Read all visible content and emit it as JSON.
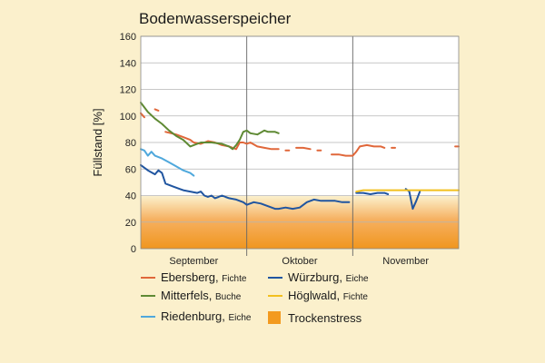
{
  "chart_data": {
    "type": "line",
    "title": "Bodenwasserspeicher",
    "xlabel": "",
    "ylabel": "Füllstand [%]",
    "ylim": [
      0,
      160
    ],
    "yticks": [
      "0",
      "20",
      "40",
      "60",
      "80",
      "100",
      "120",
      "140",
      "160"
    ],
    "xlim": [
      "2023-09-01",
      "2023-11-30"
    ],
    "x_categories": [
      "September",
      "Oktober",
      "November"
    ],
    "grid": true,
    "background_band": {
      "name": "Trockenstress",
      "ymin": 0,
      "ymax": 40,
      "color": "#f39a1f"
    },
    "legend_position": "bottom",
    "series": [
      {
        "name": "Ebersberg,",
        "species": "Fichte",
        "color": "#e0673a",
        "segments": [
          [
            [
              "2023-09-01",
              102
            ],
            [
              "2023-09-02",
              99
            ]
          ],
          [
            [
              "2023-09-05",
              105
            ],
            [
              "2023-09-06",
              104
            ]
          ],
          [
            [
              "2023-09-08",
              88
            ],
            [
              "2023-09-11",
              86
            ],
            [
              "2023-09-13",
              84
            ],
            [
              "2023-09-15",
              82
            ],
            [
              "2023-09-16",
              80
            ],
            [
              "2023-09-18",
              79
            ],
            [
              "2023-09-20",
              81
            ],
            [
              "2023-09-22",
              80
            ],
            [
              "2023-09-24",
              78
            ],
            [
              "2023-09-26",
              77
            ],
            [
              "2023-09-28",
              75
            ],
            [
              "2023-09-29",
              80
            ],
            [
              "2023-09-30",
              80
            ],
            [
              "2023-10-01",
              79
            ],
            [
              "2023-10-02",
              80
            ],
            [
              "2023-10-04",
              77
            ],
            [
              "2023-10-06",
              76
            ],
            [
              "2023-10-08",
              75
            ],
            [
              "2023-10-10",
              75
            ]
          ],
          [
            [
              "2023-10-12",
              74
            ],
            [
              "2023-10-13",
              74
            ]
          ],
          [
            [
              "2023-10-15",
              76
            ],
            [
              "2023-10-17",
              76
            ],
            [
              "2023-10-19",
              75
            ]
          ],
          [
            [
              "2023-10-21",
              74
            ],
            [
              "2023-10-22",
              74
            ]
          ],
          [
            [
              "2023-10-25",
              71
            ],
            [
              "2023-10-27",
              71
            ],
            [
              "2023-10-29",
              70
            ],
            [
              "2023-10-31",
              70
            ],
            [
              "2023-11-01",
              73
            ],
            [
              "2023-11-02",
              77
            ],
            [
              "2023-11-04",
              78
            ],
            [
              "2023-11-06",
              77
            ],
            [
              "2023-11-08",
              77
            ],
            [
              "2023-11-09",
              76
            ]
          ],
          [
            [
              "2023-11-11",
              76
            ],
            [
              "2023-11-12",
              76
            ]
          ],
          [
            [
              "2023-11-29",
              77
            ],
            [
              "2023-11-30",
              77
            ]
          ]
        ]
      },
      {
        "name": "Mitterfels,",
        "species": "Buche",
        "color": "#5f8a34",
        "segments": [
          [
            [
              "2023-09-01",
              110
            ],
            [
              "2023-09-03",
              103
            ],
            [
              "2023-09-05",
              98
            ],
            [
              "2023-09-07",
              94
            ],
            [
              "2023-09-09",
              89
            ],
            [
              "2023-09-11",
              85
            ],
            [
              "2023-09-13",
              82
            ],
            [
              "2023-09-15",
              77
            ],
            [
              "2023-09-16",
              78
            ],
            [
              "2023-09-18",
              80
            ],
            [
              "2023-09-21",
              80
            ],
            [
              "2023-09-24",
              79
            ],
            [
              "2023-09-26",
              77
            ],
            [
              "2023-09-27",
              75
            ],
            [
              "2023-09-28",
              78
            ],
            [
              "2023-09-29",
              82
            ],
            [
              "2023-09-30",
              88
            ],
            [
              "2023-10-01",
              89
            ],
            [
              "2023-10-02",
              87
            ],
            [
              "2023-10-04",
              86
            ],
            [
              "2023-10-06",
              89
            ],
            [
              "2023-10-07",
              88
            ],
            [
              "2023-10-09",
              88
            ],
            [
              "2023-10-10",
              87
            ]
          ]
        ]
      },
      {
        "name": "Riedenburg,",
        "species": "Eiche",
        "color": "#4fa8dc",
        "segments": [
          [
            [
              "2023-09-01",
              75
            ],
            [
              "2023-09-02",
              74
            ],
            [
              "2023-09-03",
              70
            ],
            [
              "2023-09-04",
              73
            ],
            [
              "2023-09-05",
              70
            ],
            [
              "2023-09-07",
              68
            ],
            [
              "2023-09-09",
              65
            ],
            [
              "2023-09-11",
              62
            ],
            [
              "2023-09-13",
              59
            ],
            [
              "2023-09-15",
              57
            ],
            [
              "2023-09-16",
              55
            ]
          ]
        ]
      },
      {
        "name": "Würzburg,",
        "species": "Eiche",
        "color": "#2055a0",
        "segments": [
          [
            [
              "2023-09-01",
              63
            ],
            [
              "2023-09-02",
              61
            ],
            [
              "2023-09-03",
              59
            ],
            [
              "2023-09-05",
              56
            ],
            [
              "2023-09-06",
              59
            ],
            [
              "2023-09-07",
              57
            ],
            [
              "2023-09-08",
              49
            ],
            [
              "2023-09-10",
              47
            ],
            [
              "2023-09-12",
              45
            ],
            [
              "2023-09-13",
              44
            ],
            [
              "2023-09-15",
              43
            ],
            [
              "2023-09-17",
              42
            ],
            [
              "2023-09-18",
              43
            ],
            [
              "2023-09-19",
              40
            ],
            [
              "2023-09-20",
              39
            ],
            [
              "2023-09-21",
              40
            ],
            [
              "2023-09-22",
              38
            ],
            [
              "2023-09-23",
              39
            ],
            [
              "2023-09-24",
              40
            ],
            [
              "2023-09-25",
              39
            ],
            [
              "2023-09-26",
              38
            ],
            [
              "2023-09-28",
              37
            ],
            [
              "2023-09-30",
              35
            ],
            [
              "2023-10-01",
              33
            ],
            [
              "2023-10-03",
              35
            ],
            [
              "2023-10-05",
              34
            ],
            [
              "2023-10-07",
              32
            ],
            [
              "2023-10-09",
              30
            ],
            [
              "2023-10-10",
              30
            ],
            [
              "2023-10-12",
              31
            ],
            [
              "2023-10-14",
              30
            ],
            [
              "2023-10-16",
              31
            ],
            [
              "2023-10-18",
              35
            ],
            [
              "2023-10-20",
              37
            ],
            [
              "2023-10-22",
              36
            ],
            [
              "2023-10-24",
              36
            ],
            [
              "2023-10-26",
              36
            ],
            [
              "2023-10-28",
              35
            ],
            [
              "2023-10-30",
              35
            ]
          ],
          [
            [
              "2023-11-01",
              42
            ],
            [
              "2023-11-03",
              42
            ],
            [
              "2023-11-05",
              41
            ],
            [
              "2023-11-07",
              42
            ],
            [
              "2023-11-09",
              42
            ],
            [
              "2023-11-10",
              41
            ]
          ],
          [
            [
              "2023-11-15",
              45
            ],
            [
              "2023-11-16",
              43
            ],
            [
              "2023-11-17",
              30
            ],
            [
              "2023-11-18",
              36
            ],
            [
              "2023-11-19",
              43
            ]
          ]
        ]
      },
      {
        "name": "Höglwald,",
        "species": "Fichte",
        "color": "#f2c01e",
        "segments": [
          [
            [
              "2023-11-01",
              43
            ],
            [
              "2023-11-03",
              44
            ],
            [
              "2023-11-05",
              44
            ],
            [
              "2023-11-08",
              44
            ],
            [
              "2023-11-11",
              44
            ],
            [
              "2023-11-14",
              44
            ],
            [
              "2023-11-16",
              44
            ],
            [
              "2023-11-19",
              44
            ],
            [
              "2023-11-22",
              44
            ],
            [
              "2023-11-25",
              44
            ],
            [
              "2023-11-28",
              44
            ],
            [
              "2023-11-30",
              44
            ]
          ]
        ]
      }
    ]
  }
}
